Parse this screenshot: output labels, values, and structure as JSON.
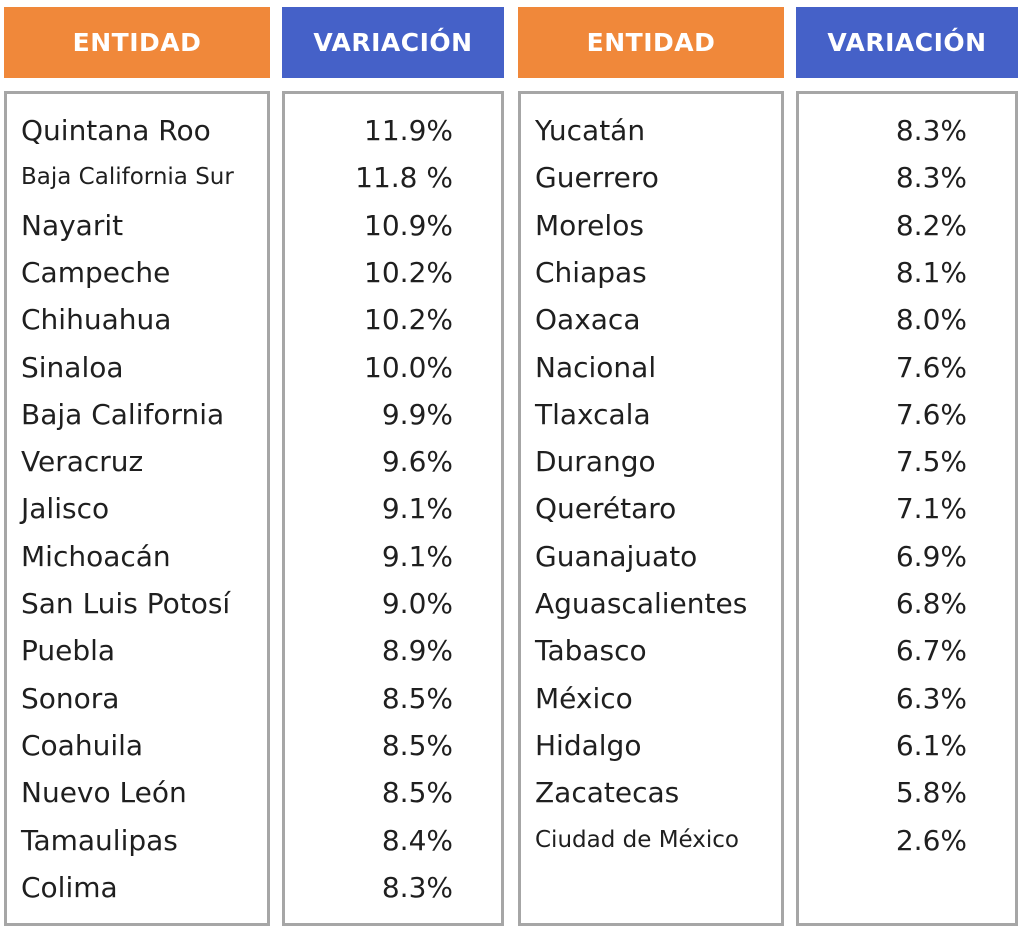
{
  "headers": {
    "entidad": "ENTIDAD",
    "variacion": "VARIACIÓN"
  },
  "colors": {
    "entidad_header": "#f0883a",
    "variacion_header": "#4561c8",
    "border": "#a6a6a6"
  },
  "chart_data": {
    "type": "table",
    "columns": [
      "ENTIDAD",
      "VARIACIÓN"
    ],
    "left_table": [
      {
        "entidad": "Quintana Roo",
        "variacion": "11.9%"
      },
      {
        "entidad": "Baja California Sur",
        "variacion": "11.8 %"
      },
      {
        "entidad": "Nayarit",
        "variacion": "10.9%"
      },
      {
        "entidad": "Campeche",
        "variacion": "10.2%"
      },
      {
        "entidad": "Chihuahua",
        "variacion": "10.2%"
      },
      {
        "entidad": "Sinaloa",
        "variacion": "10.0%"
      },
      {
        "entidad": "Baja California",
        "variacion": "9.9%"
      },
      {
        "entidad": "Veracruz",
        "variacion": "9.6%"
      },
      {
        "entidad": "Jalisco",
        "variacion": "9.1%"
      },
      {
        "entidad": "Michoacán",
        "variacion": "9.1%"
      },
      {
        "entidad": "San Luis Potosí",
        "variacion": "9.0%"
      },
      {
        "entidad": "Puebla",
        "variacion": "8.9%"
      },
      {
        "entidad": "Sonora",
        "variacion": "8.5%"
      },
      {
        "entidad": "Coahuila",
        "variacion": "8.5%"
      },
      {
        "entidad": "Nuevo León",
        "variacion": "8.5%"
      },
      {
        "entidad": "Tamaulipas",
        "variacion": "8.4%"
      },
      {
        "entidad": "Colima",
        "variacion": "8.3%"
      }
    ],
    "right_table": [
      {
        "entidad": "Yucatán",
        "variacion": "8.3%"
      },
      {
        "entidad": "Guerrero",
        "variacion": "8.3%"
      },
      {
        "entidad": "Morelos",
        "variacion": "8.2%"
      },
      {
        "entidad": "Chiapas",
        "variacion": "8.1%"
      },
      {
        "entidad": "Oaxaca",
        "variacion": "8.0%"
      },
      {
        "entidad": "Nacional",
        "variacion": "7.6%"
      },
      {
        "entidad": "Tlaxcala",
        "variacion": "7.6%"
      },
      {
        "entidad": "Durango",
        "variacion": "7.5%"
      },
      {
        "entidad": "Querétaro",
        "variacion": "7.1%"
      },
      {
        "entidad": "Guanajuato",
        "variacion": "6.9%"
      },
      {
        "entidad": "Aguascalientes",
        "variacion": "6.8%"
      },
      {
        "entidad": "Tabasco",
        "variacion": "6.7%"
      },
      {
        "entidad": "México",
        "variacion": "6.3%"
      },
      {
        "entidad": "Hidalgo",
        "variacion": "6.1%"
      },
      {
        "entidad": "Zacatecas",
        "variacion": "5.8%"
      },
      {
        "entidad": "Ciudad de México",
        "variacion": "2.6%"
      }
    ]
  }
}
